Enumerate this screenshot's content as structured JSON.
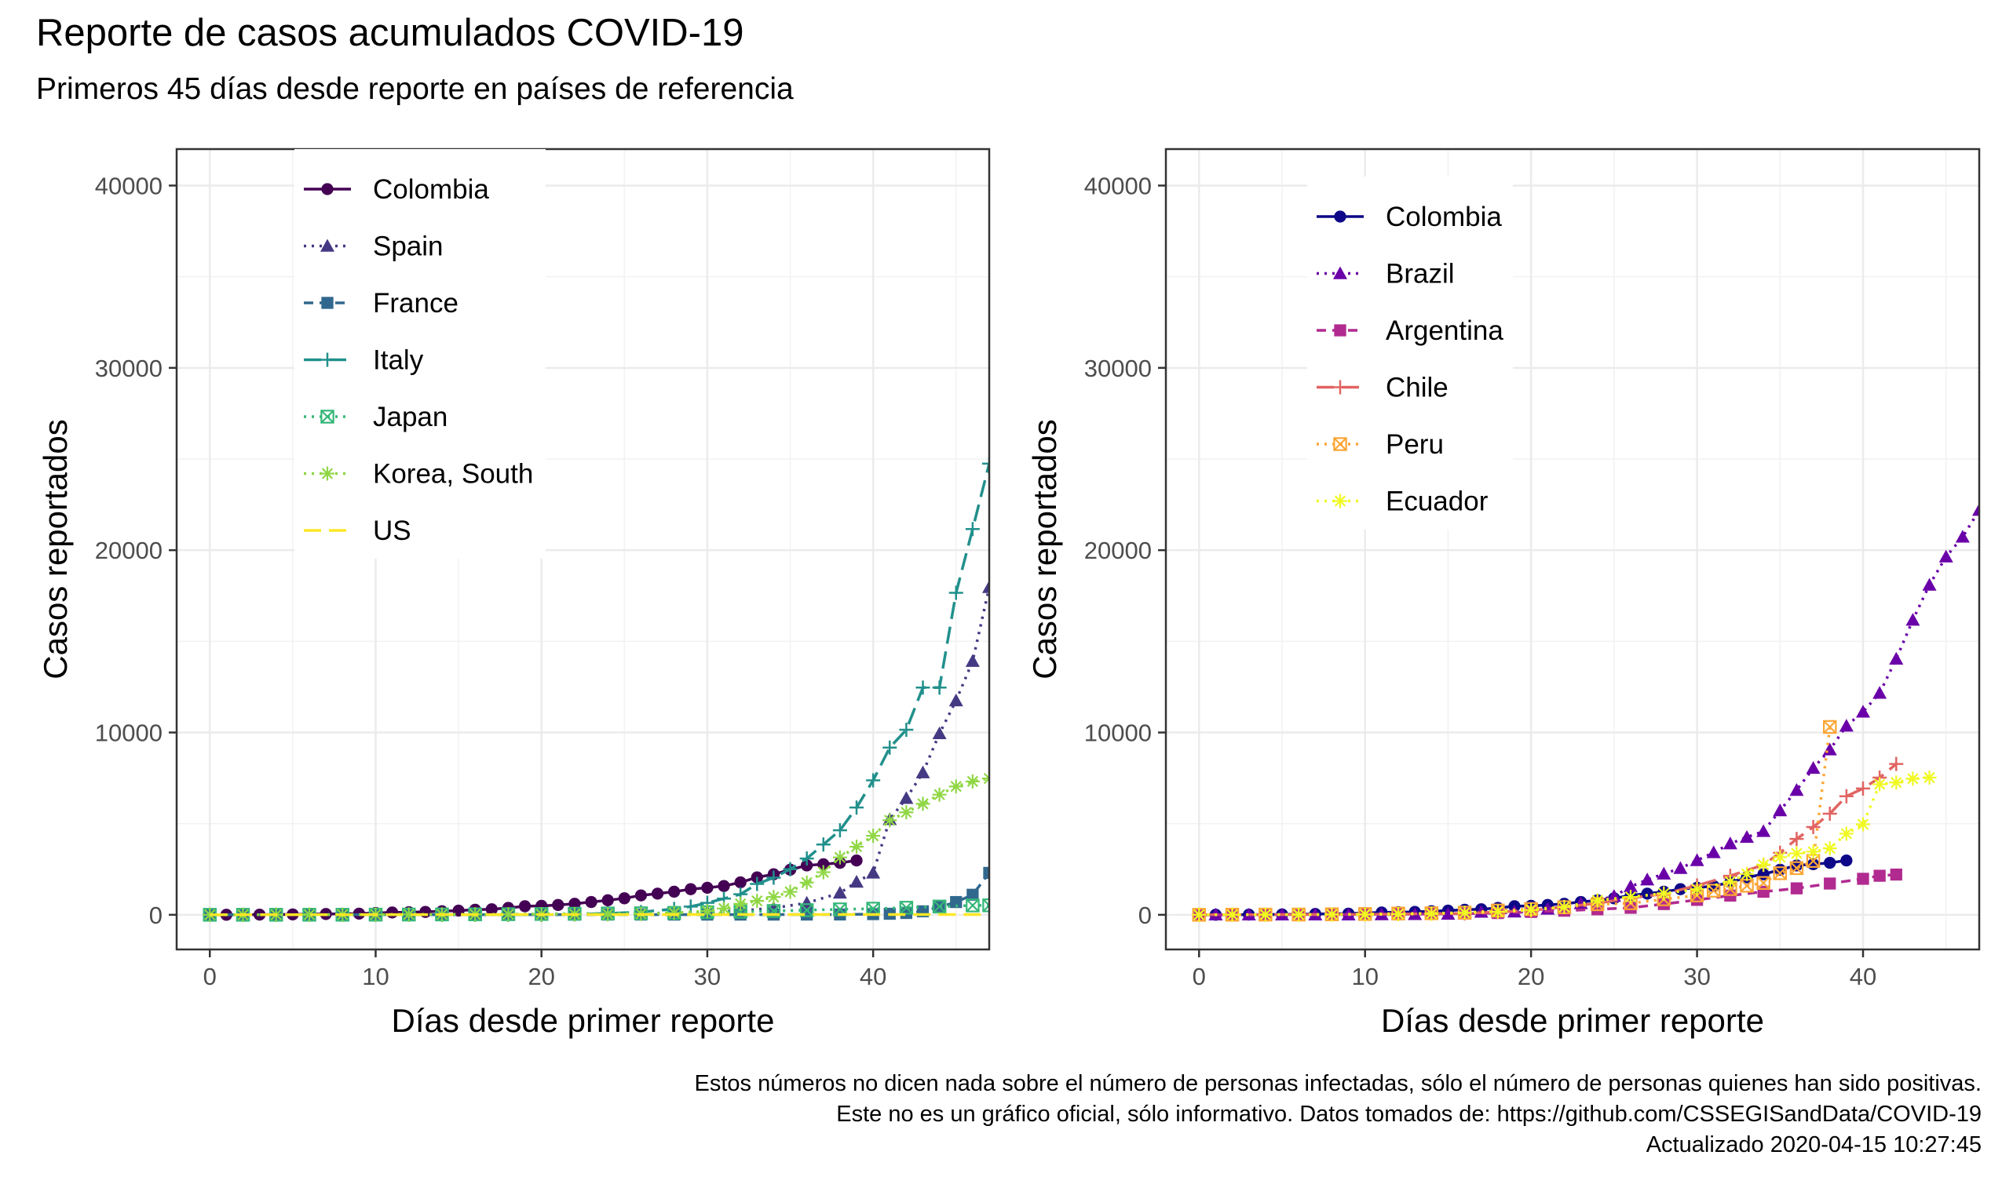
{
  "header": {
    "title": "Reporte de casos acumulados COVID-19",
    "subtitle": "Primeros 45 días desde reporte en países de referencia"
  },
  "caption": {
    "line1": "Estos números no dicen nada sobre el número de personas infectadas, sólo el número de personas quienes han sido positivas.",
    "line2": "Este no es un gráfico oficial, sólo informativo. Datos tomados de: https://github.com/CSSEGISandData/COVID-19",
    "line3": "Actualizado 2020-04-15 10:27:45"
  },
  "chart_data": [
    {
      "type": "line",
      "xlabel": "Días desde primer reporte",
      "ylabel": "Casos reportados",
      "xlim": [
        -2,
        47
      ],
      "ylim": [
        -1900,
        42000
      ],
      "xticks": [
        0,
        10,
        20,
        30,
        40
      ],
      "yticks": [
        0,
        10000,
        20000,
        30000,
        40000
      ],
      "grid": true,
      "legend_position": "top-left",
      "series": [
        {
          "name": "Colombia",
          "color": "#440154",
          "dash": "solid",
          "marker": "circle",
          "x": [
            0,
            1,
            2,
            3,
            4,
            5,
            6,
            7,
            8,
            9,
            10,
            11,
            12,
            13,
            14,
            15,
            16,
            17,
            18,
            19,
            20,
            21,
            22,
            23,
            24,
            25,
            26,
            27,
            28,
            29,
            30,
            31,
            32,
            33,
            34,
            35,
            36,
            37,
            38,
            39
          ],
          "y": [
            1,
            3,
            3,
            9,
            13,
            22,
            34,
            45,
            54,
            65,
            102,
            128,
            145,
            158,
            196,
            231,
            277,
            306,
            378,
            470,
            491,
            539,
            608,
            702,
            798,
            906,
            1065,
            1161,
            1267,
            1406,
            1485,
            1579,
            1780,
            2054,
            2223,
            2473,
            2709,
            2776,
            2852,
            2979
          ]
        },
        {
          "name": "Spain",
          "color": "#443983",
          "dash": "dotted",
          "marker": "triangle",
          "x": [
            0,
            2,
            4,
            6,
            8,
            10,
            12,
            14,
            16,
            18,
            20,
            22,
            24,
            26,
            28,
            30,
            32,
            34,
            36,
            38,
            39,
            40,
            41,
            42,
            43,
            44,
            45,
            46,
            47
          ],
          "y": [
            1,
            2,
            2,
            2,
            2,
            2,
            2,
            2,
            2,
            2,
            2,
            6,
            25,
            48,
            83,
            150,
            230,
            370,
            650,
            1200,
            1800,
            2300,
            5232,
            6391,
            7798,
            9942,
            11748,
            13910,
            17963
          ]
        },
        {
          "name": "France",
          "color": "#31688E",
          "dash": "dashed",
          "marker": "square",
          "x": [
            0,
            2,
            4,
            6,
            8,
            10,
            12,
            14,
            16,
            18,
            20,
            22,
            24,
            26,
            28,
            30,
            32,
            34,
            36,
            38,
            40,
            41,
            42,
            43,
            44,
            45,
            46,
            47
          ],
          "y": [
            2,
            3,
            3,
            5,
            6,
            6,
            6,
            6,
            11,
            11,
            12,
            12,
            12,
            12,
            12,
            12,
            12,
            12,
            14,
            18,
            38,
            57,
            100,
            191,
            420,
            700,
            1100,
            2300
          ]
        },
        {
          "name": "Italy",
          "color": "#21908C",
          "dash": "longdash",
          "marker": "plus",
          "x": [
            0,
            2,
            4,
            6,
            8,
            10,
            12,
            14,
            16,
            18,
            20,
            22,
            24,
            26,
            28,
            29,
            30,
            31,
            32,
            33,
            34,
            35,
            36,
            37,
            38,
            39,
            40,
            41,
            42,
            43,
            44,
            45,
            46,
            47
          ],
          "y": [
            2,
            2,
            2,
            3,
            3,
            3,
            3,
            3,
            3,
            3,
            3,
            20,
            79,
            150,
            322,
            453,
            655,
            888,
            1128,
            1694,
            2036,
            2502,
            3089,
            3858,
            4636,
            5883,
            7375,
            9172,
            10149,
            12462,
            12462,
            17660,
            21157,
            24747
          ]
        },
        {
          "name": "Japan",
          "color": "#35B779",
          "dash": "dotted",
          "marker": "boxx",
          "x": [
            0,
            2,
            4,
            6,
            8,
            10,
            12,
            14,
            16,
            18,
            20,
            22,
            24,
            26,
            28,
            30,
            32,
            34,
            36,
            38,
            40,
            42,
            44,
            46,
            47
          ],
          "y": [
            2,
            2,
            2,
            4,
            4,
            8,
            14,
            20,
            26,
            33,
            45,
            59,
            73,
            84,
            105,
            144,
            170,
            210,
            256,
            300,
            337,
            389,
            455,
            514,
            520
          ]
        },
        {
          "name": "Korea, South",
          "color": "#8FD744",
          "dash": "dotted",
          "marker": "asterisk",
          "x": [
            0,
            2,
            4,
            6,
            8,
            10,
            12,
            14,
            16,
            18,
            20,
            22,
            24,
            26,
            28,
            30,
            31,
            32,
            33,
            34,
            35,
            36,
            37,
            38,
            39,
            40,
            41,
            42,
            43,
            44,
            45,
            46,
            47
          ],
          "y": [
            1,
            2,
            4,
            11,
            15,
            16,
            23,
            27,
            28,
            28,
            29,
            30,
            31,
            51,
            104,
            204,
            346,
            602,
            763,
            977,
            1261,
            1766,
            2337,
            3150,
            3736,
            4335,
            5186,
            5621,
            6088,
            6593,
            7041,
            7314,
            7478
          ]
        },
        {
          "name": "US",
          "color": "#FDE725",
          "dash": "longdash",
          "marker": "none",
          "x": [
            0,
            5,
            10,
            15,
            20,
            25,
            30,
            35,
            40,
            45,
            47
          ],
          "y": [
            1,
            5,
            8,
            12,
            13,
            15,
            15,
            15,
            15,
            15,
            15
          ]
        }
      ]
    },
    {
      "type": "line",
      "xlabel": "Días desde primer reporte",
      "ylabel": "Casos reportados",
      "xlim": [
        -2,
        47
      ],
      "ylim": [
        -1900,
        42000
      ],
      "xticks": [
        0,
        10,
        20,
        30,
        40
      ],
      "yticks": [
        0,
        10000,
        20000,
        30000,
        40000
      ],
      "grid": true,
      "legend_position": "top-left",
      "series": [
        {
          "name": "Colombia",
          "color": "#0D0887",
          "dash": "solid",
          "marker": "circle",
          "x": [
            0,
            1,
            2,
            3,
            4,
            5,
            6,
            7,
            8,
            9,
            10,
            11,
            12,
            13,
            14,
            15,
            16,
            17,
            18,
            19,
            20,
            21,
            22,
            23,
            24,
            25,
            26,
            27,
            28,
            29,
            30,
            31,
            32,
            33,
            34,
            35,
            36,
            37,
            38,
            39
          ],
          "y": [
            1,
            3,
            3,
            9,
            13,
            22,
            34,
            45,
            54,
            65,
            102,
            128,
            145,
            158,
            196,
            231,
            277,
            306,
            378,
            470,
            491,
            539,
            608,
            702,
            798,
            906,
            1065,
            1161,
            1267,
            1406,
            1485,
            1579,
            1780,
            2054,
            2223,
            2473,
            2709,
            2776,
            2852,
            2979
          ]
        },
        {
          "name": "Brazil",
          "color": "#6A00A8",
          "dash": "dotted",
          "marker": "triangle",
          "x": [
            0,
            1,
            2,
            3,
            4,
            5,
            6,
            7,
            8,
            9,
            10,
            11,
            12,
            13,
            14,
            15,
            16,
            17,
            18,
            19,
            20,
            21,
            22,
            23,
            24,
            25,
            26,
            27,
            28,
            29,
            30,
            31,
            32,
            33,
            34,
            35,
            36,
            37,
            38,
            39,
            40,
            41,
            42,
            43,
            44,
            45,
            46,
            47
          ],
          "y": [
            1,
            1,
            1,
            1,
            2,
            2,
            2,
            2,
            4,
            4,
            13,
            13,
            20,
            25,
            31,
            38,
            52,
            151,
            151,
            162,
            200,
            321,
            372,
            621,
            793,
            1021,
            1546,
            1924,
            2247,
            2554,
            2985,
            3417,
            3904,
            4256,
            4579,
            5717,
            6836,
            8044,
            9056,
            10360,
            11130,
            12161,
            14034,
            16170,
            18092,
            19638,
            20727,
            22192
          ]
        },
        {
          "name": "Argentina",
          "color": "#B12A90",
          "dash": "dashed",
          "marker": "square",
          "x": [
            0,
            2,
            4,
            6,
            8,
            10,
            12,
            14,
            16,
            18,
            20,
            22,
            24,
            26,
            28,
            30,
            32,
            34,
            36,
            38,
            40,
            41,
            42
          ],
          "y": [
            1,
            2,
            8,
            12,
            17,
            19,
            31,
            45,
            65,
            97,
            158,
            225,
            301,
            387,
            589,
            820,
            1054,
            1265,
            1451,
            1715,
            1975,
            2142,
            2208
          ]
        },
        {
          "name": "Chile",
          "color": "#E16462",
          "dash": "longdash",
          "marker": "plus",
          "x": [
            0,
            2,
            4,
            6,
            8,
            10,
            12,
            14,
            16,
            18,
            20,
            22,
            24,
            26,
            28,
            30,
            32,
            34,
            35,
            36,
            37,
            38,
            39,
            40,
            41,
            42
          ],
          "y": [
            1,
            4,
            7,
            11,
            17,
            23,
            43,
            61,
            75,
            156,
            238,
            434,
            632,
            922,
            1142,
            1610,
            2139,
            2738,
            3404,
            4161,
            4815,
            5546,
            6501,
            6927,
            7525,
            8273
          ]
        },
        {
          "name": "Peru",
          "color": "#FCA636",
          "dash": "dotted",
          "marker": "boxx",
          "x": [
            0,
            2,
            4,
            6,
            8,
            10,
            12,
            14,
            16,
            18,
            20,
            22,
            24,
            26,
            28,
            30,
            31,
            32,
            33,
            34,
            35,
            36,
            37,
            38
          ],
          "y": [
            1,
            7,
            11,
            15,
            28,
            43,
            71,
            86,
            117,
            234,
            318,
            416,
            580,
            635,
            852,
            1065,
            1323,
            1414,
            1595,
            1746,
            2281,
            2561,
            2954,
            10303
          ]
        },
        {
          "name": "Ecuador",
          "color": "#F0F921",
          "dash": "dotted",
          "marker": "asterisk",
          "x": [
            0,
            2,
            4,
            6,
            8,
            10,
            12,
            14,
            16,
            18,
            20,
            22,
            24,
            26,
            28,
            30,
            32,
            33,
            34,
            35,
            36,
            37,
            38,
            39,
            40,
            41,
            42,
            43,
            44
          ],
          "y": [
            1,
            6,
            7,
            10,
            14,
            17,
            37,
            58,
            111,
            168,
            260,
            426,
            789,
            981,
            1173,
            1403,
            1823,
            2240,
            2748,
            3163,
            3368,
            3465,
            3646,
            4450,
            4965,
            7161,
            7257,
            7466,
            7529
          ]
        }
      ]
    }
  ]
}
